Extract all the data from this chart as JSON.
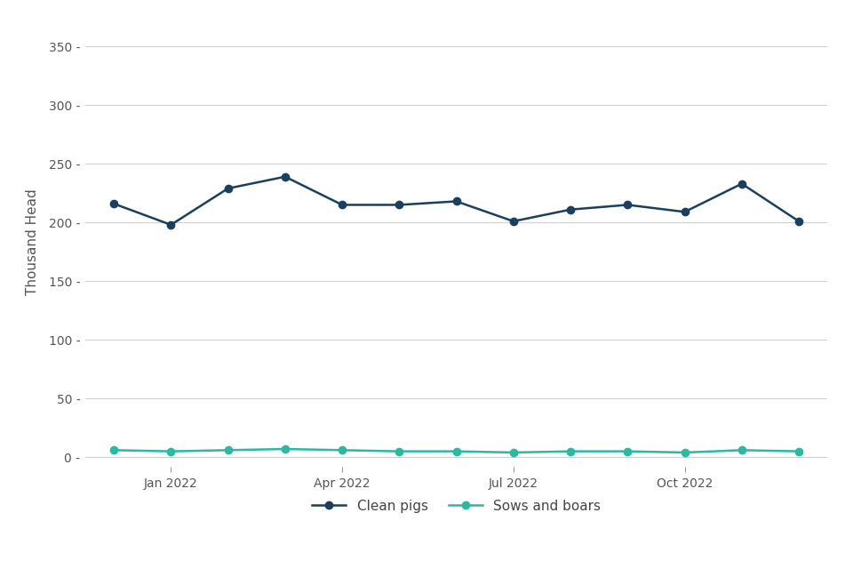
{
  "clean_pigs": [
    216,
    198,
    229,
    239,
    215,
    215,
    218,
    201,
    211,
    215,
    209,
    233,
    201
  ],
  "sows_and_boars": [
    6,
    5,
    6,
    7,
    6,
    5,
    5,
    4,
    5,
    5,
    4,
    6,
    5
  ],
  "x_indices": [
    0,
    1,
    2,
    3,
    4,
    5,
    6,
    7,
    8,
    9,
    10,
    11,
    12
  ],
  "xtick_positions": [
    1,
    4,
    7,
    10
  ],
  "xtick_labels": [
    "Jan 2022",
    "Apr 2022",
    "Jul 2022",
    "Oct 2022"
  ],
  "ylabel": "Thousand Head",
  "yticks": [
    0,
    50,
    100,
    150,
    200,
    250,
    300,
    350
  ],
  "ylim": [
    -8,
    375
  ],
  "xlim": [
    -0.5,
    12.5
  ],
  "clean_pigs_color": "#1b3f5e",
  "sows_color": "#2db8a2",
  "background_color": "#ffffff",
  "grid_color": "#d0d0d0",
  "legend_labels": [
    "Clean pigs",
    "Sows and boars"
  ],
  "marker_size": 6,
  "line_width": 1.8,
  "ylabel_fontsize": 11,
  "tick_fontsize": 10,
  "legend_fontsize": 11
}
